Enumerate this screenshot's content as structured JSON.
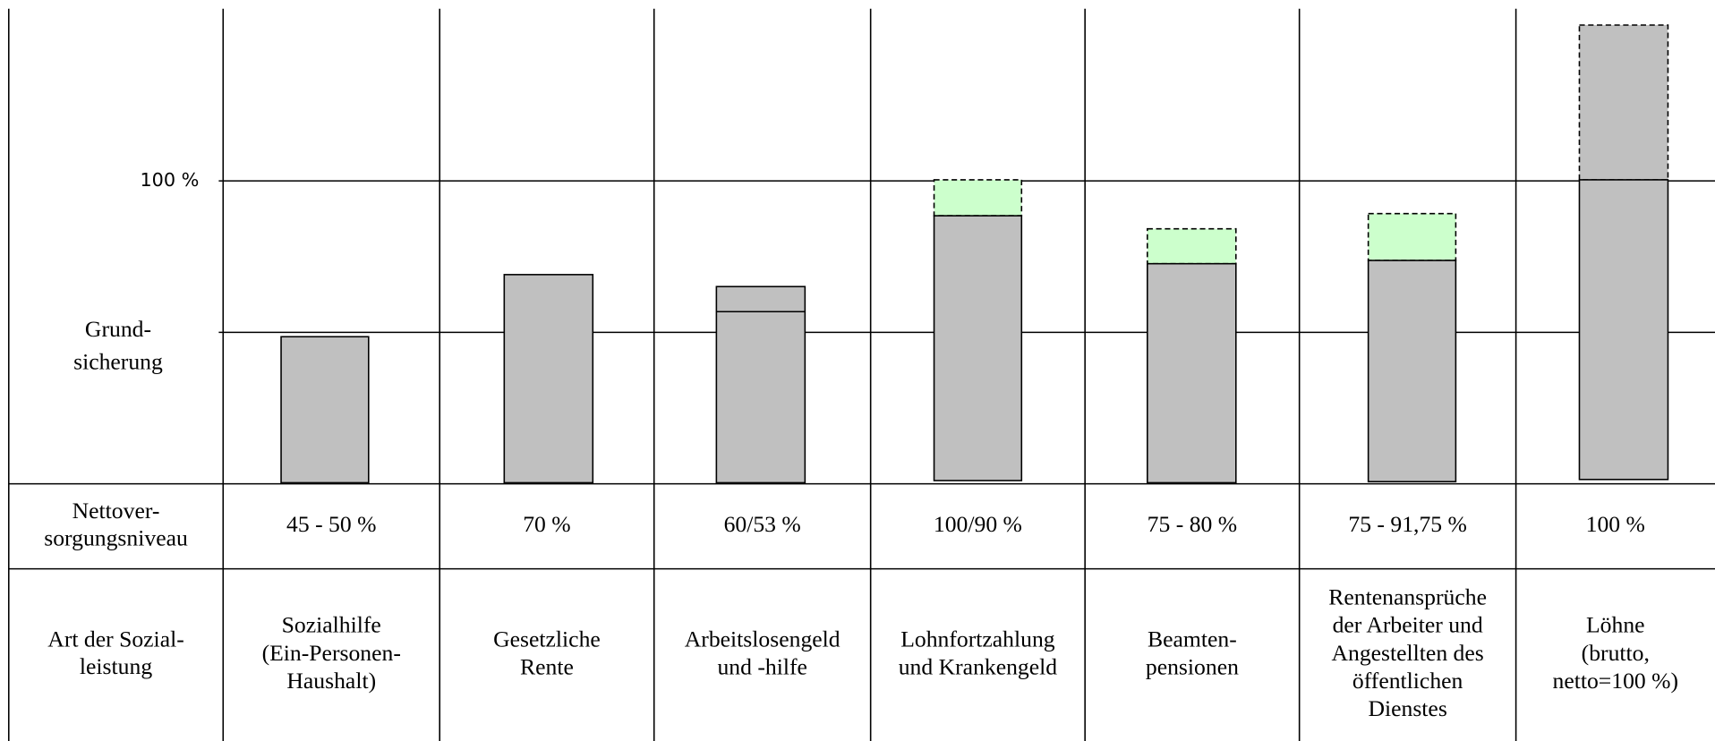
{
  "axis_labels": {
    "top": "100 %",
    "mid": [
      "Grund-",
      "sicherung"
    ]
  },
  "rows": [
    {
      "header": [
        "Nettover-",
        "sorgungsniveau"
      ],
      "cells": [
        [
          "45 - 50 %"
        ],
        [
          "70 %"
        ],
        [
          "60/53 %"
        ],
        [
          "100/90 %"
        ],
        [
          "75 - 80 %"
        ],
        [
          "75 - 91,75 %"
        ],
        [
          "100 %"
        ]
      ]
    },
    {
      "header": [
        "Art der Sozial-",
        "leistung"
      ],
      "cells": [
        [
          "Sozialhilfe",
          "(Ein-Personen-",
          "Haushalt)"
        ],
        [
          "Gesetzliche",
          "Rente"
        ],
        [
          "Arbeitslosengeld",
          "und -hilfe"
        ],
        [
          "Lohnfortzahlung",
          "und Krankengeld"
        ],
        [
          "Beamten-",
          "pensionen"
        ],
        [
          "Rentenansprüche",
          "der Arbeiter und",
          "Angestellten des",
          "öffentlichen",
          "Dienstes"
        ],
        [
          "Löhne",
          "(brutto,",
          "netto=100 %)"
        ]
      ]
    }
  ]
}
